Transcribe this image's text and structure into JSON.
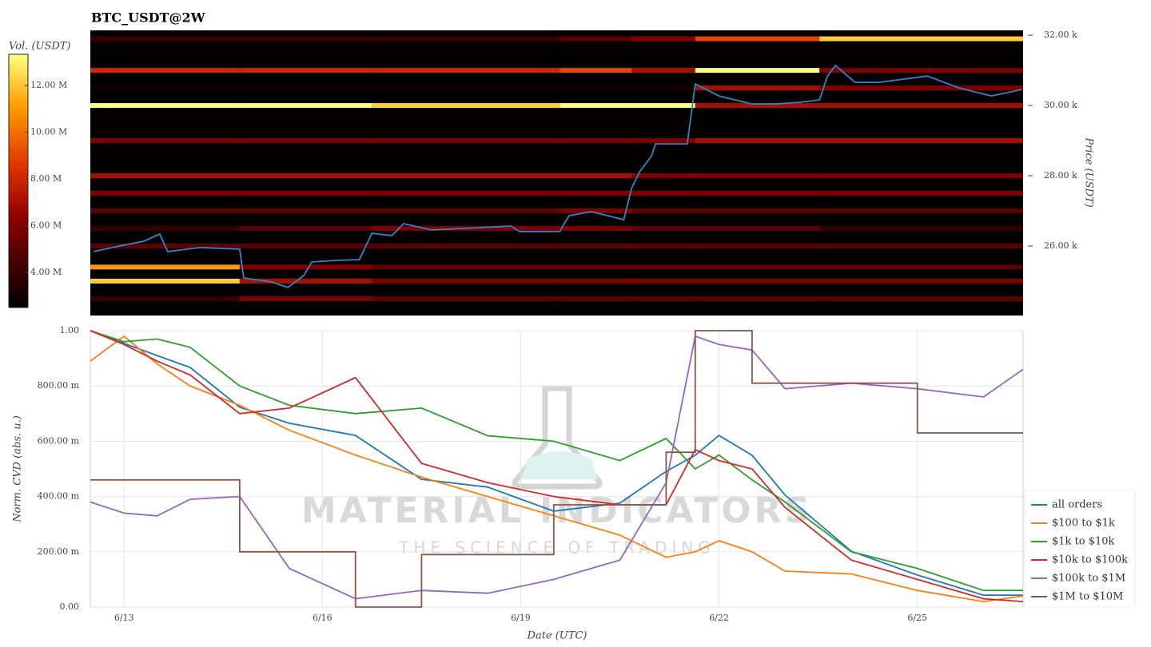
{
  "chart_data": [
    {
      "type": "heatmap",
      "title": "BTC_USDT@2W",
      "y_label": "Price (USDT)",
      "xlim": [
        12.49,
        26.6
      ],
      "ylim": [
        24020,
        32140
      ],
      "yticks": [
        {
          "value": 26000,
          "label": "26.00 k"
        },
        {
          "value": 28000,
          "label": "28.00 k"
        },
        {
          "value": 30000,
          "label": "30.00 k"
        },
        {
          "value": 32000,
          "label": "32.00 k"
        }
      ],
      "colorscale": "hot",
      "colorbar": {
        "title": "Vol. (USDT)",
        "clim": [
          2500000,
          13330000
        ],
        "ticks": [
          {
            "value": 4000000,
            "label": "4.00 M"
          },
          {
            "value": 6000000,
            "label": "6.00 M"
          },
          {
            "value": 8000000,
            "label": "8.00 M"
          },
          {
            "value": 10000000,
            "label": "10.00 M"
          },
          {
            "value": 12000000,
            "label": "12.00 M"
          }
        ]
      },
      "heatmap": {
        "time_edges": [
          12.49,
          14.75,
          16.75,
          19.59,
          20.68,
          21.64,
          23.52,
          26.6
        ],
        "levels": [
          31900,
          31000,
          30500,
          30000,
          29000,
          28000,
          27500,
          27000,
          26500,
          26000,
          25400,
          25000,
          24500
        ],
        "z": [
          [
            4000000,
            4000000,
            4000000,
            5000000,
            6000000,
            9000000,
            12000000
          ],
          [
            8000000,
            8000000,
            8000000,
            9000000,
            7000000,
            13000000,
            6000000
          ],
          [
            3000000,
            3000000,
            3000000,
            3000000,
            3000000,
            7000000,
            6000000
          ],
          [
            13000000,
            13000000,
            12000000,
            13000000,
            13000000,
            7000000,
            7000000
          ],
          [
            6000000,
            6000000,
            6000000,
            6000000,
            6000000,
            7000000,
            7000000
          ],
          [
            7000000,
            7000000,
            7000000,
            7000000,
            6000000,
            6000000,
            6000000
          ],
          [
            6000000,
            6000000,
            6000000,
            6000000,
            6000000,
            6000000,
            6000000
          ],
          [
            5000000,
            5000000,
            5000000,
            6000000,
            5000000,
            5000000,
            5000000
          ],
          [
            4000000,
            5000000,
            6000000,
            6000000,
            5000000,
            5000000,
            4000000
          ],
          [
            5000000,
            5000000,
            5000000,
            5000000,
            5000000,
            5000000,
            5000000
          ],
          [
            11000000,
            6000000,
            5000000,
            5000000,
            5000000,
            5000000,
            5000000
          ],
          [
            12000000,
            7000000,
            6000000,
            6000000,
            6000000,
            6000000,
            6000000
          ],
          [
            4000000,
            6000000,
            5000000,
            5000000,
            5000000,
            5000000,
            5000000
          ]
        ]
      },
      "line": {
        "color": "#2e86c9",
        "x": [
          12.54,
          12.94,
          13.3,
          13.54,
          13.66,
          14.15,
          14.75,
          14.81,
          15.23,
          15.48,
          15.72,
          15.84,
          16.2,
          16.56,
          16.75,
          17.05,
          17.23,
          17.65,
          18.38,
          18.86,
          18.98,
          19.59,
          19.73,
          20.07,
          20.56,
          20.68,
          20.8,
          20.98,
          21.04,
          21.52,
          21.64,
          22.0,
          22.49,
          22.85,
          23.22,
          23.52,
          23.64,
          23.76,
          24.06,
          24.42,
          25.15,
          25.63,
          26.12,
          26.58
        ],
        "values": [
          25840,
          26000,
          26136,
          26340,
          25840,
          25955,
          25910,
          25090,
          24977,
          24818,
          25160,
          25545,
          25590,
          25613,
          26363,
          26295,
          26636,
          26455,
          26522,
          26568,
          26410,
          26410,
          26863,
          26977,
          26750,
          27660,
          28113,
          28568,
          28909,
          28909,
          30613,
          30272,
          30045,
          30045,
          30091,
          30159,
          30840,
          31136,
          30659,
          30659,
          30840,
          30500,
          30272,
          30455
        ]
      }
    },
    {
      "type": "line",
      "x_label": "Date (UTC)",
      "y_label": "Norm. CVD (abs. u.)",
      "watermark": {
        "title": "MATERIAL INDICATORS",
        "subtitle": "THE SCIENCE OF TRADING"
      },
      "xlim": [
        12.49,
        26.6
      ],
      "ylim": [
        0,
        1
      ],
      "xticks": [
        {
          "value": 13,
          "label": "6/13"
        },
        {
          "value": 16,
          "label": "6/16"
        },
        {
          "value": 19,
          "label": "6/19"
        },
        {
          "value": 22,
          "label": "6/22"
        },
        {
          "value": 25,
          "label": "6/25"
        }
      ],
      "yticks": [
        {
          "value": 0,
          "label": "0.00"
        },
        {
          "value": 0.2,
          "label": "200.00 m"
        },
        {
          "value": 0.4,
          "label": "400.00 m"
        },
        {
          "value": 0.6,
          "label": "600.00 m"
        },
        {
          "value": 0.8,
          "label": "800.00 m"
        },
        {
          "value": 1,
          "label": "1.00"
        }
      ],
      "grid": true,
      "legend": "lower right",
      "x": [
        12.49,
        13,
        13.5,
        14,
        14.75,
        15.5,
        16.5,
        17.5,
        18.5,
        19.5,
        20.5,
        21.2,
        21.64,
        22,
        22.5,
        23,
        24,
        25,
        26,
        26.6
      ],
      "series": [
        {
          "name": "all orders",
          "color": "#1f77b4",
          "values": [
            1.0,
            0.954,
            0.91,
            0.867,
            0.723,
            0.665,
            0.621,
            0.462,
            0.434,
            0.347,
            0.376,
            0.491,
            0.549,
            0.621,
            0.549,
            0.405,
            0.202,
            0.116,
            0.043,
            0.043
          ]
        },
        {
          "name": "$100 to $1k",
          "color": "#ff7f0e",
          "values": [
            0.89,
            0.98,
            0.88,
            0.8,
            0.73,
            0.64,
            0.55,
            0.47,
            0.4,
            0.33,
            0.26,
            0.18,
            0.2,
            0.24,
            0.2,
            0.13,
            0.12,
            0.06,
            0.02,
            0.04
          ]
        },
        {
          "name": "$1k to $10k",
          "color": "#2ca02c",
          "values": [
            1.0,
            0.96,
            0.97,
            0.94,
            0.8,
            0.73,
            0.7,
            0.72,
            0.62,
            0.6,
            0.53,
            0.61,
            0.5,
            0.55,
            0.46,
            0.38,
            0.2,
            0.14,
            0.06,
            0.06
          ]
        },
        {
          "name": "$10k to $100k",
          "color": "#d62728",
          "values": [
            1.0,
            0.95,
            0.89,
            0.84,
            0.7,
            0.72,
            0.83,
            0.52,
            0.45,
            0.4,
            0.37,
            0.37,
            0.57,
            0.53,
            0.5,
            0.36,
            0.17,
            0.1,
            0.03,
            0.02
          ]
        },
        {
          "name": "$100k to $1M",
          "color": "#9467bd",
          "values": [
            0.38,
            0.34,
            0.33,
            0.39,
            0.4,
            0.14,
            0.03,
            0.06,
            0.05,
            0.1,
            0.17,
            0.45,
            0.98,
            0.95,
            0.93,
            0.79,
            0.81,
            0.79,
            0.76,
            0.86
          ]
        },
        {
          "name": "$1M to $10M",
          "color": "#8c564b",
          "shape": "hv",
          "values": [
            0.46,
            0.46,
            0.46,
            0.46,
            0.2,
            0.2,
            0,
            0.19,
            0.19,
            0.37,
            0.37,
            0.56,
            1.0,
            1.0,
            0.81,
            0.81,
            0.81,
            0.63,
            0.63,
            0.63
          ]
        }
      ]
    }
  ]
}
